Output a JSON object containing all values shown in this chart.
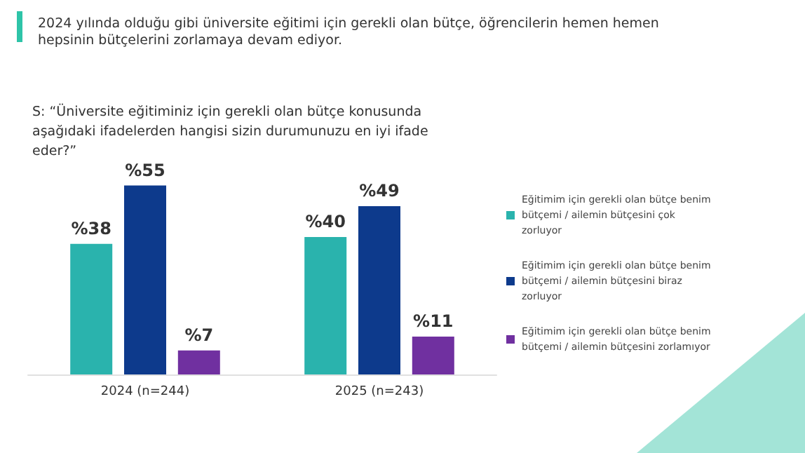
{
  "chart_data": {
    "type": "bar",
    "title": "2024 yılında olduğu gibi üniversite eğitimi için gerekli olan bütçe, öğrencilerin hemen hemen hepsinin bütçelerini zorlamaya devam ediyor.",
    "subtitle": "S: “Üniversite eğitiminiz için gerekli olan bütçe konusunda aşağıdaki ifadelerden hangisi sizin durumunuzu en iyi ifade eder?”",
    "categories": [
      "2024 (n=244)",
      "2025 (n=243)"
    ],
    "series": [
      {
        "name": "Eğitimim için gerekli olan bütçe benim bütçemi / ailemin bütçesini çok zorluyor",
        "color": "#2ab3ad",
        "values": [
          38,
          40
        ],
        "value_labels": [
          "%38",
          "%40"
        ]
      },
      {
        "name": "Eğitimim için gerekli olan bütçe benim bütçemi / ailemin bütçesini biraz zorluyor",
        "color": "#0d3a8c",
        "values": [
          55,
          49
        ],
        "value_labels": [
          "%55",
          "%49"
        ]
      },
      {
        "name": "Eğitimim için gerekli olan bütçe benim bütçemi / ailemin bütçesini zorlamıyor",
        "color": "#7030a0",
        "values": [
          7,
          11
        ],
        "value_labels": [
          "%7",
          "%11"
        ]
      }
    ],
    "legend": "right"
  }
}
